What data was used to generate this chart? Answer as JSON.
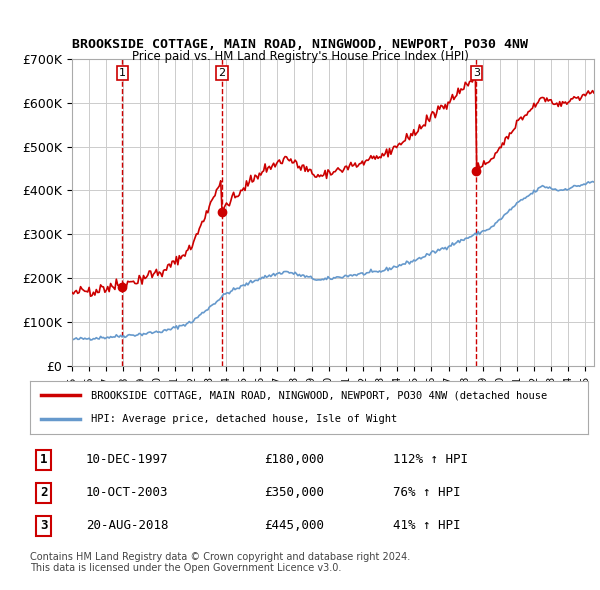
{
  "title": "BROOKSIDE COTTAGE, MAIN ROAD, NINGWOOD, NEWPORT, PO30 4NW",
  "subtitle": "Price paid vs. HM Land Registry's House Price Index (HPI)",
  "ylabel": "",
  "ylim": [
    0,
    700000
  ],
  "yticks": [
    0,
    100000,
    200000,
    300000,
    400000,
    500000,
    600000,
    700000
  ],
  "ytick_labels": [
    "£0",
    "£100K",
    "£200K",
    "£300K",
    "£400K",
    "£500K",
    "£600K",
    "£700K"
  ],
  "xlim_start": 1995.0,
  "xlim_end": 2025.5,
  "sale_dates": [
    1997.94,
    2003.77,
    2018.63
  ],
  "sale_prices": [
    180000,
    350000,
    445000
  ],
  "sale_labels": [
    "1",
    "2",
    "3"
  ],
  "sale_label_dates": [
    "10-DEC-1997",
    "10-OCT-2003",
    "20-AUG-2018"
  ],
  "sale_label_prices": [
    "£180,000",
    "£350,000",
    "£445,000"
  ],
  "sale_label_hpi": [
    "112% ↑ HPI",
    "76% ↑ HPI",
    "41% ↑ HPI"
  ],
  "legend_line1": "BROOKSIDE COTTAGE, MAIN ROAD, NINGWOOD, NEWPORT, PO30 4NW (detached house",
  "legend_line2": "HPI: Average price, detached house, Isle of Wight",
  "footer1": "Contains HM Land Registry data © Crown copyright and database right 2024.",
  "footer2": "This data is licensed under the Open Government Licence v3.0.",
  "red_color": "#cc0000",
  "blue_color": "#6699cc",
  "background_color": "#ffffff",
  "grid_color": "#cccccc"
}
